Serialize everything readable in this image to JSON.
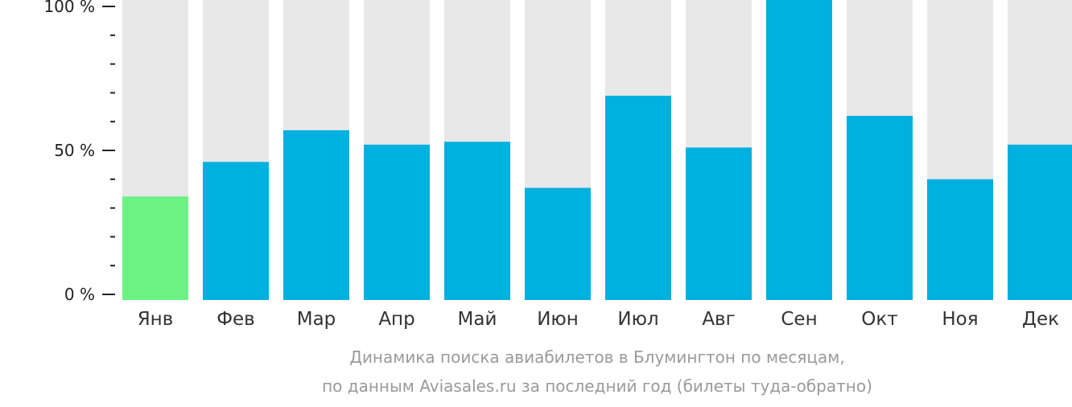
{
  "chart_data": {
    "type": "bar",
    "categories": [
      "Янв",
      "Фев",
      "Мар",
      "Апр",
      "Май",
      "Июн",
      "Июл",
      "Авг",
      "Сен",
      "Окт",
      "Ноя",
      "Дек"
    ],
    "values": [
      34,
      46,
      57,
      52,
      53,
      37,
      69,
      51,
      100,
      62,
      40,
      52
    ],
    "highlight_index": 0,
    "ylim": [
      0,
      100
    ],
    "yticks": [
      0,
      50,
      100
    ],
    "ytick_labels": [
      "0 %",
      "50 %",
      "100 %"
    ],
    "minor_ytick_step": 10,
    "title": "",
    "xlabel": "",
    "ylabel": "",
    "grid": false,
    "legend": "none",
    "colors": {
      "bar": "#00b0de",
      "highlight": "#6cf283",
      "background_bar": "#e8e8e8",
      "axis": "#222222",
      "caption": "#9a9a9a"
    }
  },
  "caption": {
    "line1": "Динамика поиска авиабилетов в Блумингтон по месяцам,",
    "line2": "по данным Aviasales.ru за последний год (билеты туда-обратно)"
  }
}
